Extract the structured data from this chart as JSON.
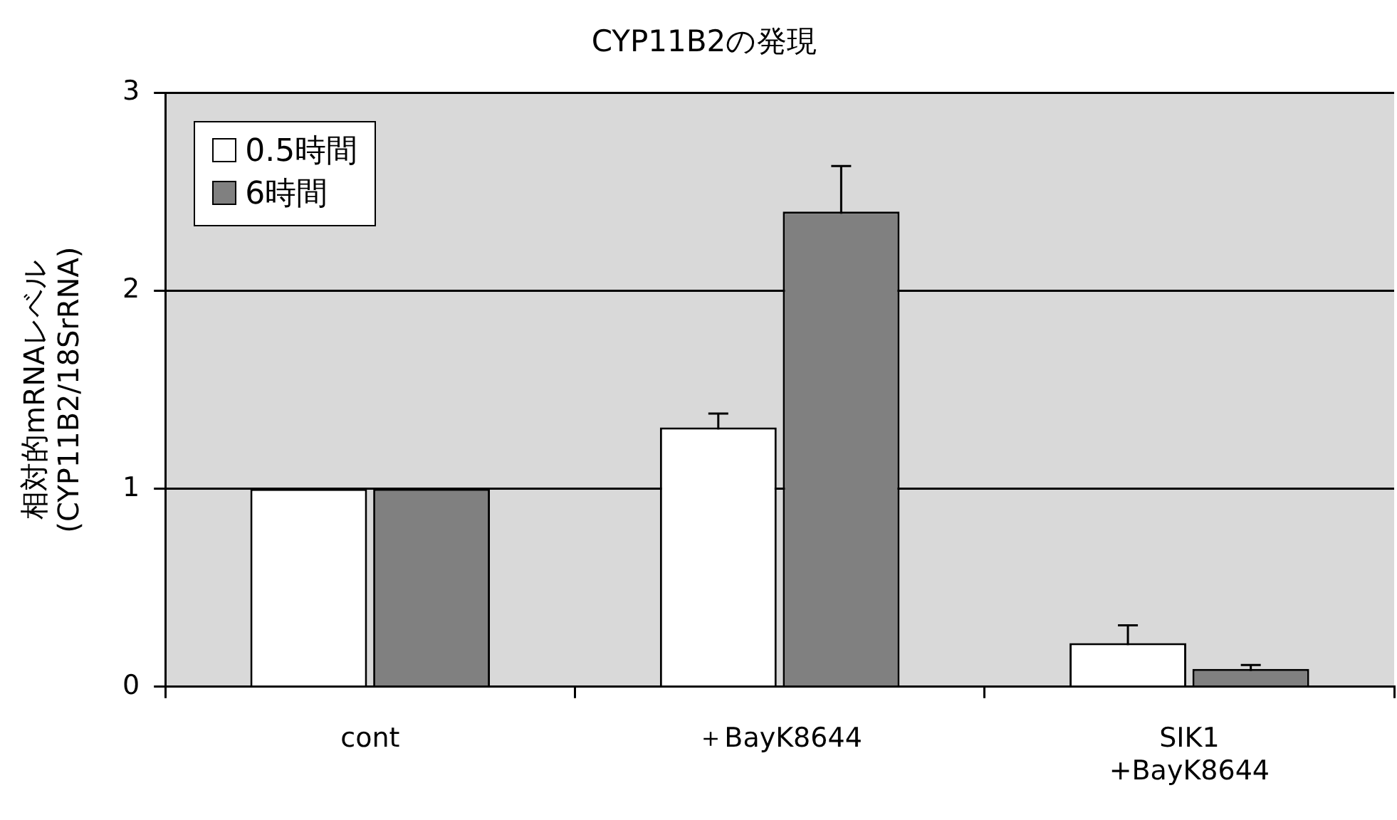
{
  "chart_data": {
    "type": "bar",
    "title": "CYP11B2の発現",
    "ylabel": "相対的mRNAレベル\n(CYP11B2/18SrRNA)",
    "categories": [
      "cont",
      "＋BayK8644",
      "SIK1\n+BayK8644"
    ],
    "series": [
      {
        "name": "0.5時間",
        "color": "#ffffff",
        "values": [
          1,
          1.31,
          0.22
        ],
        "errors": [
          null,
          0.07,
          0.09
        ]
      },
      {
        "name": "6時間",
        "color": "#808080",
        "values": [
          1,
          2.4,
          0.09
        ],
        "errors": [
          null,
          0.23,
          0.02
        ]
      }
    ],
    "ylim": [
      0,
      3
    ],
    "yticks": [
      0,
      1,
      2,
      3
    ],
    "grid": "y",
    "legend": "top left"
  }
}
